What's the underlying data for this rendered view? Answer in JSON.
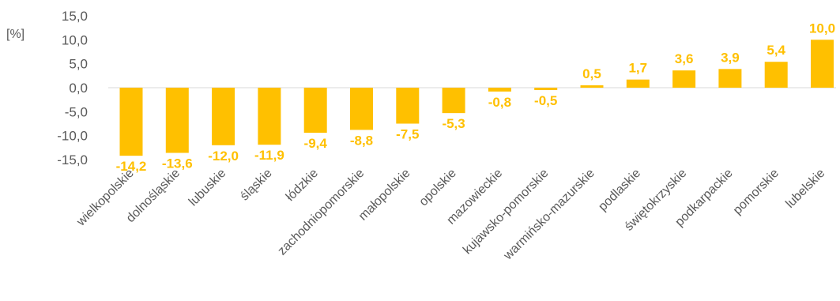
{
  "chart_data": {
    "type": "bar",
    "ylabel": "[%]",
    "ylim": [
      -15,
      15
    ],
    "yticks": [
      "15,0",
      "10,0",
      "5,0",
      "0,0",
      "-5,0",
      "-10,0",
      "-15,0"
    ],
    "categories": [
      "wielkopolskie",
      "dolnośląskie",
      "lubuskie",
      "śląskie",
      "łódzkie",
      "zachodniopomorskie",
      "małopolskie",
      "opolskie",
      "mazowieckie",
      "kujawsko-pomorskie",
      "warmińsko-mazurskie",
      "podlaskie",
      "świętokrzyskie",
      "podkarpackie",
      "pomorskie",
      "lubelskie"
    ],
    "values": [
      -14.2,
      -13.6,
      -12.0,
      -11.9,
      -9.4,
      -8.8,
      -7.5,
      -5.3,
      -0.8,
      -0.5,
      0.5,
      1.7,
      3.6,
      3.9,
      5.4,
      10.0
    ],
    "value_labels": [
      "-14,2",
      "-13,6",
      "-12,0",
      "-11,9",
      "-9,4",
      "-8,8",
      "-7,5",
      "-5,3",
      "-0,8",
      "-0,5",
      "0,5",
      "1,7",
      "3,6",
      "3,9",
      "5,4",
      "10,0"
    ],
    "bar_color": "#FFC000",
    "label_color": "#FFC000",
    "axis_text_color": "#595959",
    "grid": false,
    "legend": "none"
  }
}
